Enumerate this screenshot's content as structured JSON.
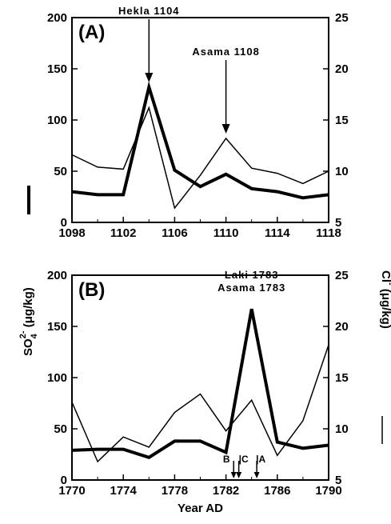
{
  "chart_data": [
    {
      "type": "line",
      "panel_label": "(A)",
      "xlabel": "",
      "xlim": [
        1098,
        1118
      ],
      "x_ticks": [
        1098,
        1102,
        1106,
        1110,
        1114,
        1118
      ],
      "ylim_left": [
        0,
        200
      ],
      "y_ticks_left": [
        0,
        50,
        100,
        150,
        200
      ],
      "ylim_right": [
        5,
        25
      ],
      "y_ticks_right": [
        5,
        10,
        15,
        20,
        25
      ],
      "series": [
        {
          "name": "SO4 2-",
          "axis": "left",
          "line": "thick",
          "x": [
            1098,
            1100,
            1102,
            1104,
            1106,
            1108,
            1110,
            1112,
            1114,
            1116,
            1118
          ],
          "values": [
            30,
            27,
            27,
            132,
            51,
            35,
            47,
            33,
            30,
            24,
            27
          ]
        },
        {
          "name": "Cl-",
          "axis": "right",
          "line": "thin",
          "x": [
            1098,
            1100,
            1102,
            1104,
            1106,
            1108,
            1110,
            1112,
            1114,
            1116,
            1118
          ],
          "values": [
            11.6,
            10.4,
            10.2,
            16.2,
            6.4,
            9.6,
            13.2,
            10.3,
            9.8,
            8.8,
            10.0
          ]
        }
      ],
      "annotations": [
        {
          "text": "Hekla 1104",
          "x": 1104,
          "y": 132
        },
        {
          "text": "Asama 1108",
          "x": 1110,
          "y": 82
        }
      ],
      "markers": []
    },
    {
      "type": "line",
      "panel_label": "(B)",
      "xlabel": "Year AD",
      "xlim": [
        1770,
        1790
      ],
      "x_ticks": [
        1770,
        1774,
        1778,
        1782,
        1786,
        1790
      ],
      "ylim_left": [
        0,
        200
      ],
      "y_ticks_left": [
        0,
        50,
        100,
        150,
        200
      ],
      "ylim_right": [
        5,
        25
      ],
      "y_ticks_right": [
        5,
        10,
        15,
        20,
        25
      ],
      "series": [
        {
          "name": "SO4 2-",
          "axis": "left",
          "line": "thick",
          "x": [
            1770,
            1772,
            1774,
            1776,
            1778,
            1780,
            1782,
            1784,
            1786,
            1788,
            1790
          ],
          "values": [
            29,
            30,
            30,
            22,
            38,
            38,
            27,
            167,
            37,
            31,
            34
          ]
        },
        {
          "name": "Cl-",
          "axis": "right",
          "line": "thin",
          "x": [
            1770,
            1772,
            1774,
            1776,
            1778,
            1780,
            1782,
            1784,
            1786,
            1788,
            1790
          ],
          "values": [
            12.6,
            6.8,
            9.2,
            8.2,
            11.6,
            13.4,
            9.8,
            12.8,
            7.4,
            10.8,
            18.2
          ]
        }
      ],
      "annotations": [
        {
          "text": "Laki 1783",
          "x": 1784,
          "y": 167
        },
        {
          "text": "Asama 1783",
          "x": 1784,
          "y": 167
        }
      ],
      "markers": [
        {
          "text": "B",
          "x": 1782.6
        },
        {
          "text": "C",
          "x": 1783.0
        },
        {
          "text": "A",
          "x": 1784.4
        }
      ]
    }
  ],
  "axis_titles": {
    "left_prefix": "SO",
    "left_sub": "4",
    "left_sup": "2-",
    "left_units": " (μg/kg)",
    "right_prefix": "Cl",
    "right_sup": "-",
    "right_units": " (μg/kg)"
  }
}
